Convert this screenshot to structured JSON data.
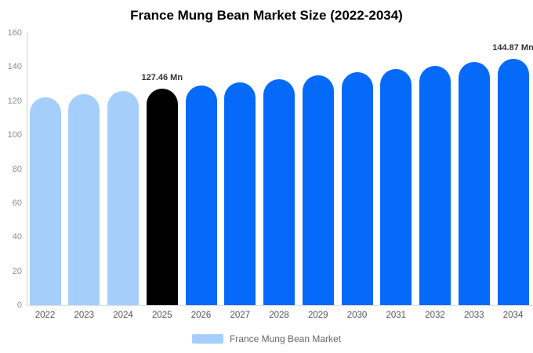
{
  "title": "France Mung Bean Market Size (2022-2034)",
  "legend": {
    "label": "France Mung Bean Market",
    "swatch_color": "#a6cefb"
  },
  "colors": {
    "historical": "#a6cefb",
    "base_year": "#000000",
    "forecast": "#0569fa",
    "axis_line": "#d0d0d0",
    "baseline": "#e0e0e0",
    "tick_text": "#8c8c8c",
    "x_label_text": "#555555",
    "annotation_text": "#333333"
  },
  "chart_data": {
    "type": "bar",
    "title": "France Mung Bean Market Size (2022-2034)",
    "unit": "Mn",
    "categories": [
      "2022",
      "2023",
      "2024",
      "2025",
      "2026",
      "2027",
      "2028",
      "2029",
      "2030",
      "2031",
      "2032",
      "2033",
      "2034"
    ],
    "values": [
      122.13,
      123.88,
      125.66,
      127.46,
      129.29,
      131.14,
      133.02,
      134.93,
      136.86,
      138.82,
      140.81,
      142.83,
      144.87
    ],
    "bar_roles": [
      "historical",
      "historical",
      "historical",
      "base_year",
      "forecast",
      "forecast",
      "forecast",
      "forecast",
      "forecast",
      "forecast",
      "forecast",
      "forecast",
      "forecast"
    ],
    "annotations": [
      {
        "category": "2025",
        "text": "127.46 Mn"
      },
      {
        "category": "2034",
        "text": "144.87 Mn"
      }
    ],
    "xlabel": "",
    "ylabel": "",
    "ylim": [
      0,
      160
    ],
    "ytick_step": 20,
    "grid": false,
    "legend_position": "bottom",
    "legend_entries": [
      "France Mung Bean Market"
    ]
  }
}
